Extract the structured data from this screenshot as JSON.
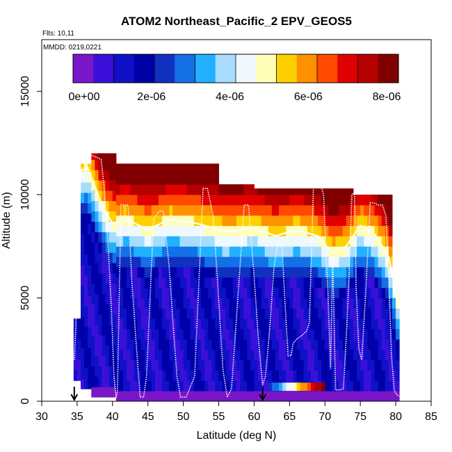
{
  "chart_data": {
    "type": "heatmap",
    "title": "ATOM2 Northeast_Pacific_2 EPV_GEOS5",
    "flights_label": "Flts: 10,11",
    "dates_label": "MMDD: 0219,0221",
    "xlabel": "Latitude (deg N)",
    "ylabel": "Altitude (m)",
    "xlim": [
      30,
      85
    ],
    "ylim": [
      0,
      17500
    ],
    "x_ticks": [
      30,
      35,
      40,
      45,
      50,
      55,
      60,
      65,
      70,
      75,
      80,
      85
    ],
    "y_ticks": [
      0,
      5000,
      10000,
      15000
    ],
    "y_tick_labels": [
      "0",
      "5000",
      "10000",
      "15000"
    ],
    "colorbar": {
      "range": [
        0,
        8.3e-06
      ],
      "ticks": [
        0,
        2e-06,
        4e-06,
        6e-06,
        8e-06
      ],
      "tick_labels": [
        "0e+00",
        "2e-06",
        "4e-06",
        "6e-06",
        "8e-06"
      ],
      "colors": [
        "#7a16c8",
        "#3a10d8",
        "#1010c8",
        "#0000a8",
        "#1030c0",
        "#1470e6",
        "#22b0ff",
        "#a8dcff",
        "#f0f8ff",
        "#ffffb8",
        "#ffd000",
        "#ff9000",
        "#ff4a00",
        "#e00000",
        "#b40000",
        "#800000"
      ]
    },
    "columns": [
      {
        "lat": [
          34.5,
          35.5
        ],
        "alt": [
          1000,
          4000
        ]
      },
      {
        "lat": [
          35.5,
          37.0
        ],
        "alt": [
          600,
          11500
        ]
      },
      {
        "lat": [
          37.0,
          40.5
        ],
        "alt": [
          200,
          12000
        ]
      },
      {
        "lat": [
          40.5,
          48.0
        ],
        "alt": [
          0,
          11500
        ]
      },
      {
        "lat": [
          48.0,
          55.0
        ],
        "alt": [
          0,
          11500
        ]
      },
      {
        "lat": [
          55.0,
          60.0
        ],
        "alt": [
          0,
          10500
        ]
      },
      {
        "lat": [
          60.0,
          64.0
        ],
        "alt": [
          0,
          10300
        ]
      },
      {
        "lat": [
          64.0,
          69.0
        ],
        "alt": [
          0,
          10300
        ]
      },
      {
        "lat": [
          69.0,
          74.0
        ],
        "alt": [
          0,
          10300
        ]
      },
      {
        "lat": [
          74.0,
          79.5
        ],
        "alt": [
          0,
          10000
        ]
      },
      {
        "lat": [
          79.5,
          80.5
        ],
        "alt": [
          0,
          5000
        ]
      }
    ],
    "tropopause_profile": {
      "lat": [
        34.5,
        36.5,
        38.5,
        40.0,
        42.0,
        45.0,
        48.0,
        52.0,
        56.0,
        60.0,
        63.0,
        66.0,
        69.0,
        71.0,
        73.0,
        75.0,
        77.0,
        79.0,
        80.5
      ],
      "alt": [
        11000,
        11300,
        9500,
        8600,
        8800,
        8300,
        8800,
        8600,
        8200,
        8400,
        8000,
        8300,
        8000,
        7200,
        7500,
        8500,
        8100,
        7000,
        4500
      ]
    },
    "surface_band": {
      "lat": [
        62.0,
        70.0
      ],
      "alt": [
        500,
        900
      ]
    },
    "flight_track": {
      "lat": [
        34.6,
        34.8,
        35.0,
        35.3,
        35.6,
        35.9,
        36.2,
        37.0,
        37.8,
        38.4,
        38.8,
        39.3,
        39.8,
        40.2,
        40.5,
        40.7,
        41.2,
        42.2,
        42.7,
        43.3,
        43.9,
        44.4,
        44.8,
        45.8,
        46.6,
        47.2,
        48.0,
        48.6,
        49.1,
        49.6,
        50.4,
        51.6,
        52.8,
        53.4,
        54.2,
        54.8,
        55.6,
        56.2,
        56.8,
        57.8,
        58.6,
        59.2,
        60.0,
        60.6,
        61.2,
        61.6,
        62.2,
        62.8,
        63.4,
        63.9,
        64.4,
        64.8,
        65.2,
        65.5,
        66.0,
        66.8,
        67.4,
        67.8,
        68.4,
        69.2,
        69.8,
        70.4,
        70.8,
        71.1,
        71.5,
        72.0,
        72.6,
        73.0,
        73.4,
        73.8,
        74.2,
        74.4,
        74.8,
        75.2,
        75.8,
        76.4,
        76.9,
        77.5,
        78.1,
        78.6,
        79.0,
        79.4,
        79.8,
        80.2,
        80.5
      ],
      "alt": [
        2000,
        3500,
        6000,
        9000,
        11300,
        10800,
        11900,
        11900,
        11800,
        11700,
        10400,
        8000,
        4800,
        1200,
        160,
        500,
        9500,
        9500,
        6000,
        3000,
        200,
        200,
        1200,
        8800,
        9200,
        9200,
        6500,
        3500,
        1200,
        200,
        200,
        1200,
        10300,
        10300,
        9000,
        6000,
        1500,
        200,
        600,
        5500,
        9500,
        9500,
        6000,
        3000,
        800,
        1200,
        3500,
        6500,
        7700,
        7700,
        4500,
        2200,
        2200,
        2800,
        3000,
        3200,
        3400,
        3800,
        10700,
        10700,
        10000,
        5500,
        1600,
        7000,
        550,
        550,
        600,
        3000,
        6000,
        10000,
        10100,
        5500,
        2500,
        2000,
        5500,
        9600,
        9600,
        9500,
        9500,
        9000,
        6000,
        2200,
        500,
        300,
        250
      ]
    },
    "markers_lat": [
      34.6,
      61.2
    ]
  }
}
